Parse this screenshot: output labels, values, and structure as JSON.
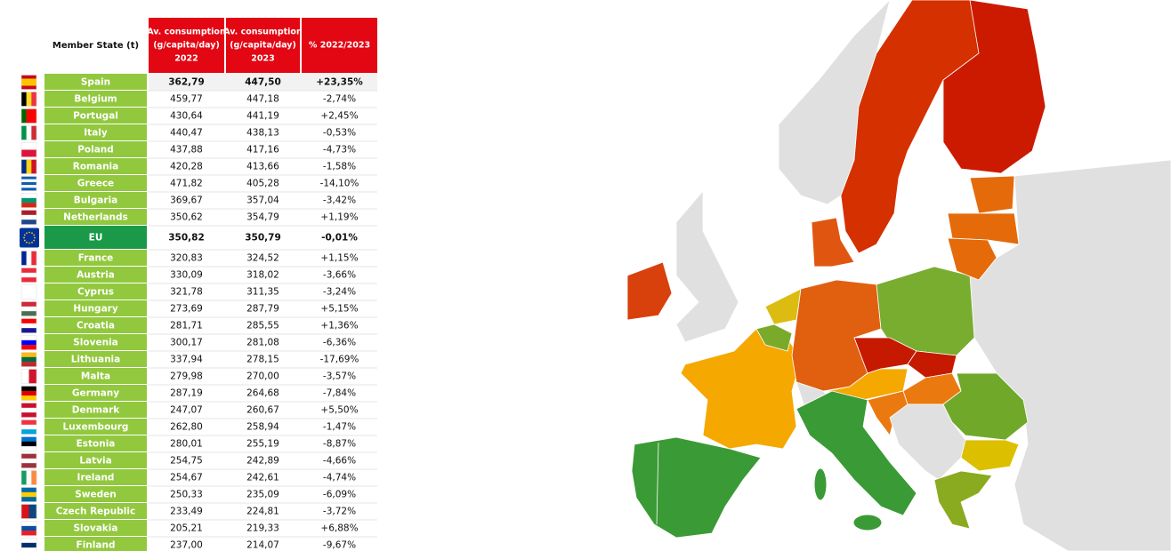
{
  "table": {
    "header": [
      [
        "Member State (t)"
      ],
      [
        "Av. consumption",
        "(g/capita/day)",
        "2022"
      ],
      [
        "Av. consumption",
        "(g/capita/day)",
        "2023"
      ],
      [
        "% 2022/2023"
      ]
    ],
    "rows": [
      [
        "Spain",
        "362,79",
        "447,50",
        "+23,35%"
      ],
      [
        "Belgium",
        "459,77",
        "447,18",
        "-2,74%"
      ],
      [
        "Portugal",
        "430,64",
        "441,19",
        "+2,45%"
      ],
      [
        "Italy",
        "440,47",
        "438,13",
        "-0,53%"
      ],
      [
        "Poland",
        "437,88",
        "417,16",
        "-4,73%"
      ],
      [
        "Romania",
        "420,28",
        "413,66",
        "-1,58%"
      ],
      [
        "Greece",
        "471,82",
        "405,28",
        "-14,10%"
      ],
      [
        "Bulgaria",
        "369,67",
        "357,04",
        "-3,42%"
      ],
      [
        "Netherlands",
        "350,62",
        "354,79",
        "+1,19%"
      ],
      [
        "EU",
        "350,82",
        "350,79",
        "-0,01%"
      ],
      [
        "France",
        "320,83",
        "324,52",
        "+1,15%"
      ],
      [
        "Austria",
        "330,09",
        "318,02",
        "-3,66%"
      ],
      [
        "Cyprus",
        "321,78",
        "311,35",
        "-3,24%"
      ],
      [
        "Hungary",
        "273,69",
        "287,79",
        "+5,15%"
      ],
      [
        "Croatia",
        "281,71",
        "285,55",
        "+1,36%"
      ],
      [
        "Slovenia",
        "300,17",
        "281,08",
        "-6,36%"
      ],
      [
        "Lithuania",
        "337,94",
        "278,15",
        "-17,69%"
      ],
      [
        "Malta",
        "279,98",
        "270,00",
        "-3,57%"
      ],
      [
        "Germany",
        "287,19",
        "264,68",
        "-7,84%"
      ],
      [
        "Denmark",
        "247,07",
        "260,67",
        "+5,50%"
      ],
      [
        "Luxembourg",
        "262,80",
        "258,94",
        "-1,47%"
      ],
      [
        "Estonia",
        "280,01",
        "255,19",
        "-8,87%"
      ],
      [
        "Latvia",
        "254,75",
        "242,89",
        "-4,66%"
      ],
      [
        "Ireland",
        "254,67",
        "242,61",
        "-4,74%"
      ],
      [
        "Sweden",
        "250,33",
        "235,09",
        "-6,09%"
      ],
      [
        "Czech Republic",
        "233,49",
        "224,81",
        "-3,72%"
      ],
      [
        "Slovakia",
        "205,21",
        "219,33",
        "+6,88%"
      ],
      [
        "Finland",
        "237,00",
        "214,07",
        "-9,67%"
      ]
    ]
  }
}
